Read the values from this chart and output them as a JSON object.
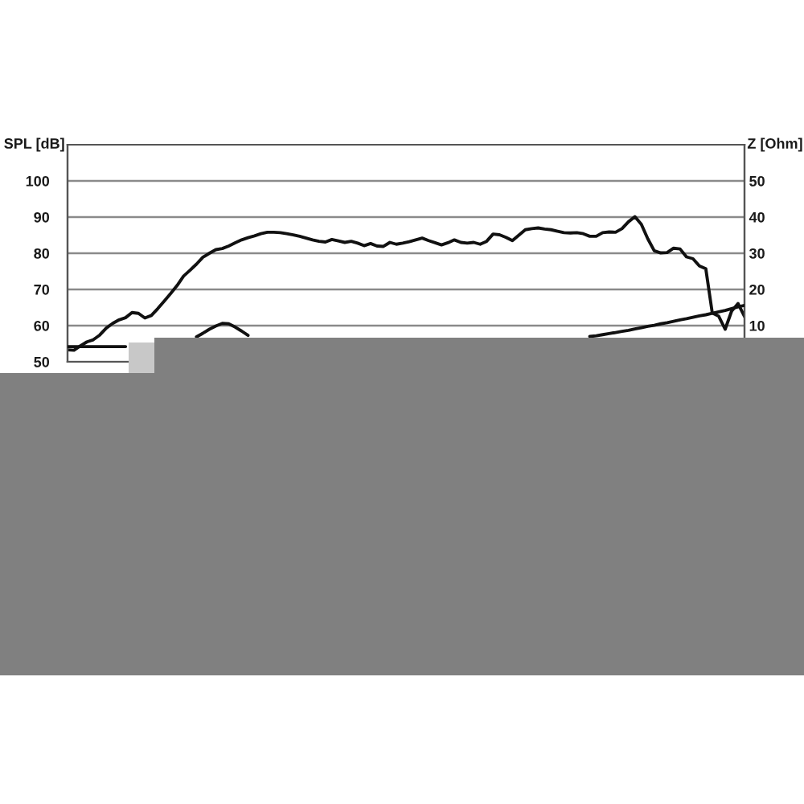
{
  "chart_data": {
    "type": "line",
    "ylabel": "SPL [dB]",
    "y2label": "Z [Ohm]",
    "categories": [
      null,
      null,
      null,
      null,
      null,
      null,
      null,
      null,
      null,
      null,
      null,
      null,
      null,
      null,
      null,
      null,
      null,
      null,
      null,
      null,
      null,
      null,
      null,
      null,
      null,
      null,
      null,
      null,
      null,
      null,
      null,
      null,
      null,
      null,
      null,
      null,
      null,
      null,
      null,
      null,
      null,
      null,
      null,
      null,
      null,
      null,
      null,
      null,
      null,
      null,
      null,
      null,
      null,
      null,
      null,
      null,
      null,
      null,
      null,
      null,
      null,
      null,
      null,
      null,
      null,
      null,
      null,
      null,
      null,
      null,
      null,
      null,
      null,
      null,
      null,
      null,
      null,
      null,
      null,
      null,
      null,
      null,
      null,
      null,
      null,
      null,
      null,
      null,
      null,
      null,
      null,
      null,
      null,
      null,
      null,
      null,
      null,
      null,
      null,
      null,
      null,
      null,
      null,
      null,
      null,
      null
    ],
    "series": [
      {
        "color": "#111111",
        "values": [
          53.3,
          53.2,
          54.4,
          55.5,
          56.1,
          57.4,
          59.3,
          60.6,
          61.6,
          62.2,
          63.6,
          63.4,
          62.1,
          62.8,
          64.7,
          66.8,
          68.9,
          71.1,
          73.7,
          75.3,
          77.0,
          78.9,
          80.0,
          81.0,
          81.3,
          82.0,
          82.9,
          83.7,
          84.3,
          84.8,
          85.4,
          85.8,
          85.8,
          85.7,
          85.4,
          85.1,
          84.7,
          84.2,
          83.7,
          83.3,
          83.1,
          83.8,
          83.4,
          83.0,
          83.3,
          82.8,
          82.1,
          82.7,
          82.0,
          81.9,
          83.0,
          82.5,
          82.8,
          83.2,
          83.7,
          84.2,
          83.5,
          82.9,
          82.3,
          82.9,
          83.7,
          83.0,
          82.8,
          83.0,
          82.5,
          83.3,
          85.3,
          85.1,
          84.4,
          83.5,
          85.0,
          86.5,
          86.8,
          87.0,
          86.7,
          86.5,
          86.1,
          85.7,
          85.6,
          85.7,
          85.4,
          84.7,
          84.7,
          85.7,
          85.9,
          85.8,
          86.8,
          88.7,
          90.1,
          88.0,
          84.0,
          80.7,
          80.1,
          80.2,
          81.4,
          81.2,
          79.0,
          78.5,
          76.5,
          75.7,
          63.5,
          62.6,
          59.0,
          64.0,
          66.1,
          62.5
        ]
      },
      {
        "color": "#111111",
        "axis": "y2",
        "values": [
          4.2,
          4.2,
          4.2,
          4.2,
          4.2,
          4.2,
          4.2,
          4.2,
          4.2,
          4.2,
          null,
          null,
          null,
          null,
          null,
          null,
          null,
          null,
          null,
          null,
          6.9,
          7.9,
          9.0,
          9.9,
          10.6,
          10.5,
          9.6,
          8.5,
          7.3,
          null,
          null,
          null,
          null,
          null,
          null,
          null,
          null,
          null,
          null,
          null,
          null,
          null,
          null,
          null,
          null,
          null,
          null,
          null,
          null,
          null,
          null,
          null,
          null,
          null,
          null,
          null,
          null,
          null,
          null,
          null,
          null,
          null,
          null,
          null,
          null,
          null,
          null,
          null,
          null,
          null,
          null,
          null,
          null,
          null,
          null,
          null,
          null,
          null,
          null,
          null,
          null,
          7.0,
          7.2,
          7.5,
          7.8,
          8.1,
          8.4,
          8.7,
          9.1,
          9.4,
          9.8,
          10.1,
          10.5,
          10.8,
          11.2,
          11.6,
          11.9,
          12.3,
          12.7,
          13.0,
          13.4,
          13.8,
          14.2,
          14.7,
          15.2,
          15.6
        ]
      }
    ],
    "ylim": [
      50,
      110
    ],
    "yticks": [
      50,
      60,
      70,
      80,
      90,
      100
    ],
    "y2lim": [
      0,
      60
    ],
    "y2ticks": [
      10,
      20,
      30,
      40,
      50
    ],
    "grid": "y"
  }
}
